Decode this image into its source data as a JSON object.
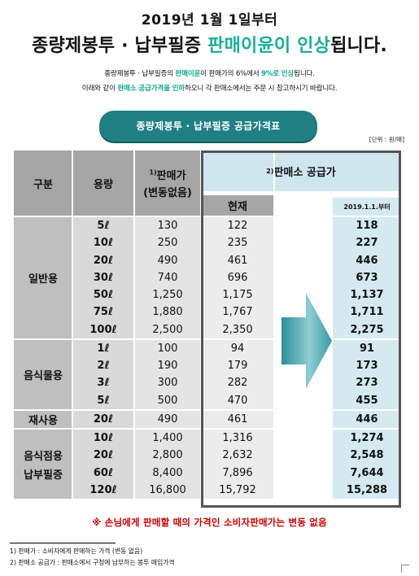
{
  "header": {
    "date_line": "2019년 1월 1일부터",
    "headline_pre": "종량제봉투 · 납부필증 ",
    "headline_green": "판매이윤이 인상",
    "headline_post": "됩니다."
  },
  "intro": {
    "line1_a": "종량제봉투 · 납부필증의 ",
    "line1_b": "판매이윤",
    "line1_c": "이 판매가의 6%에서 ",
    "line1_d": "9%로 인상",
    "line1_e": "됩니다.",
    "line2_a": "이래와 같이 ",
    "line2_b": "판매소 공급가격을 인하",
    "line2_c": "하오니 각 판매소에서는 주문 시 참고하시기 바랍니다."
  },
  "table_title": "종량제봉투 · 납부필증 공급가격표",
  "unit": "[단위 : 원/매]",
  "columns": {
    "category": "구분",
    "volume": "용량",
    "price_sup": "1)",
    "price_1": "판매가",
    "price_2": "(변동없음)",
    "supply_sup": "2)",
    "supply": "판매소 공급가",
    "current": "현재",
    "new": "2019.1.1.부터"
  },
  "groups": [
    {
      "label": "일반용",
      "rows": [
        {
          "vol": "5ℓ",
          "price": "130",
          "cur": "122",
          "new": "118"
        },
        {
          "vol": "10ℓ",
          "price": "250",
          "cur": "235",
          "new": "227"
        },
        {
          "vol": "20ℓ",
          "price": "490",
          "cur": "461",
          "new": "446"
        },
        {
          "vol": "30ℓ",
          "price": "740",
          "cur": "696",
          "new": "673"
        },
        {
          "vol": "50ℓ",
          "price": "1,250",
          "cur": "1,175",
          "new": "1,137"
        },
        {
          "vol": "75ℓ",
          "price": "1,880",
          "cur": "1,767",
          "new": "1,711"
        },
        {
          "vol": "100ℓ",
          "price": "2,500",
          "cur": "2,350",
          "new": "2,275"
        }
      ]
    },
    {
      "label": "음식물용",
      "rows": [
        {
          "vol": "1ℓ",
          "price": "100",
          "cur": "94",
          "new": "91"
        },
        {
          "vol": "2ℓ",
          "price": "190",
          "cur": "179",
          "new": "173"
        },
        {
          "vol": "3ℓ",
          "price": "300",
          "cur": "282",
          "new": "273"
        },
        {
          "vol": "5ℓ",
          "price": "500",
          "cur": "470",
          "new": "455"
        }
      ]
    },
    {
      "label": "재사용",
      "rows": [
        {
          "vol": "20ℓ",
          "price": "490",
          "cur": "461",
          "new": "446"
        }
      ]
    },
    {
      "label_1": "음식점용",
      "label_2": "납부필증",
      "rows": [
        {
          "vol": "10ℓ",
          "price": "1,400",
          "cur": "1,316",
          "new": "1,274"
        },
        {
          "vol": "20ℓ",
          "price": "2,800",
          "cur": "2,632",
          "new": "2,548"
        },
        {
          "vol": "60ℓ",
          "price": "8,400",
          "cur": "7,896",
          "new": "7,644"
        },
        {
          "vol": "120ℓ",
          "price": "16,800",
          "cur": "15,792",
          "new": "15,288"
        }
      ]
    }
  ],
  "notice": "※ 손님에게 판매할 때의 가격인 소비자판매가는 변동 없음",
  "footnotes": [
    "1) 판매가 : 소비자에게 판매하는 가격 (변동 없음)",
    "2) 판매소 공급가 : 판매소에서 구청에 납부하는 봉투 매입가격"
  ],
  "colors": {
    "accent_green": "#19b09a",
    "title_bar": "#1f7f83",
    "notice_red": "#d00000",
    "arrow": "#2a8f9a"
  }
}
